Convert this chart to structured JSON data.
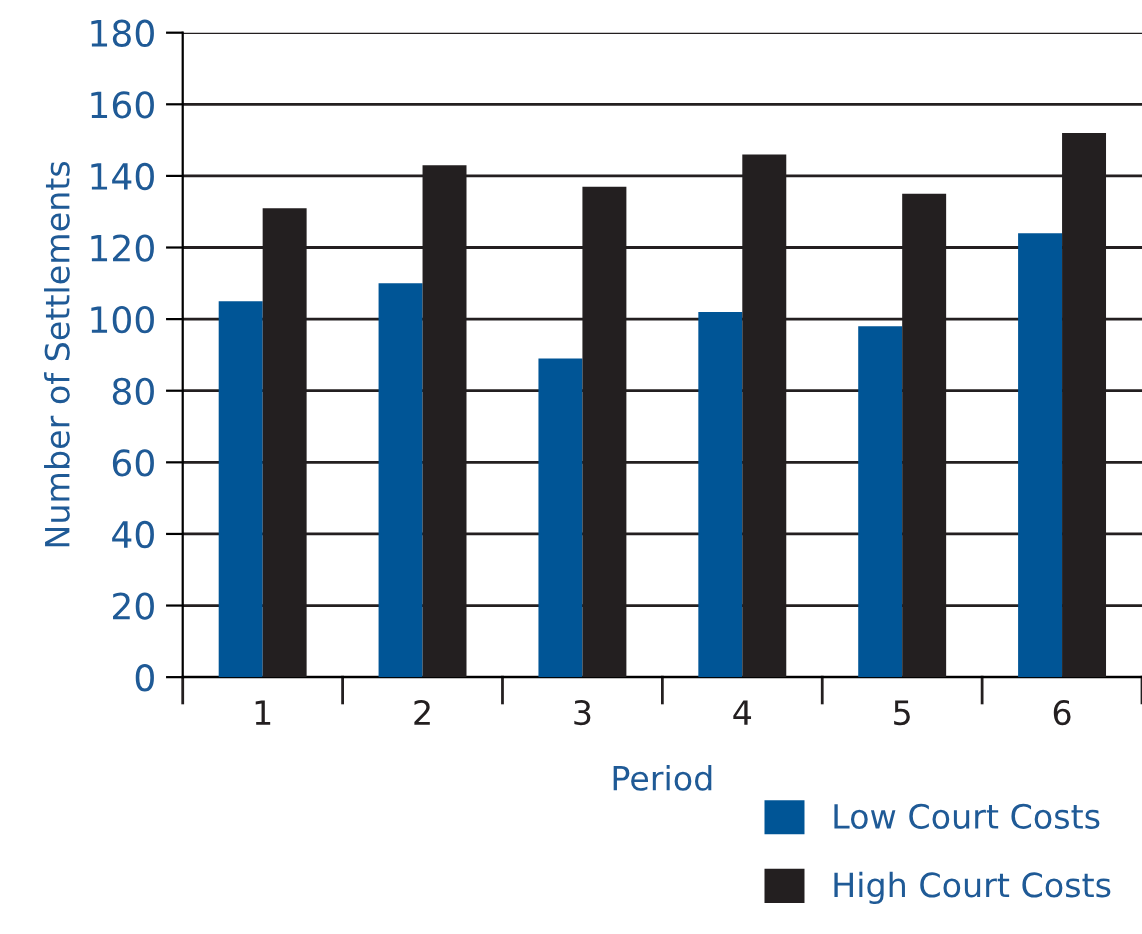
{
  "chart_data": {
    "type": "bar",
    "xlabel": "Period",
    "ylabel": "Number of Settlements",
    "categories": [
      "1",
      "2",
      "3",
      "4",
      "5",
      "6"
    ],
    "series": [
      {
        "name": "Low Court Costs",
        "color": "#005596",
        "values": [
          105,
          110,
          89,
          102,
          98,
          124
        ]
      },
      {
        "name": "High Court Costs",
        "color": "#231f20",
        "values": [
          131,
          143,
          137,
          146,
          135,
          152
        ]
      }
    ],
    "ylim": [
      0,
      180
    ],
    "yticks": [
      0,
      20,
      40,
      60,
      80,
      100,
      120,
      140,
      160,
      180
    ],
    "grid": "y",
    "legend": "bottom right"
  }
}
